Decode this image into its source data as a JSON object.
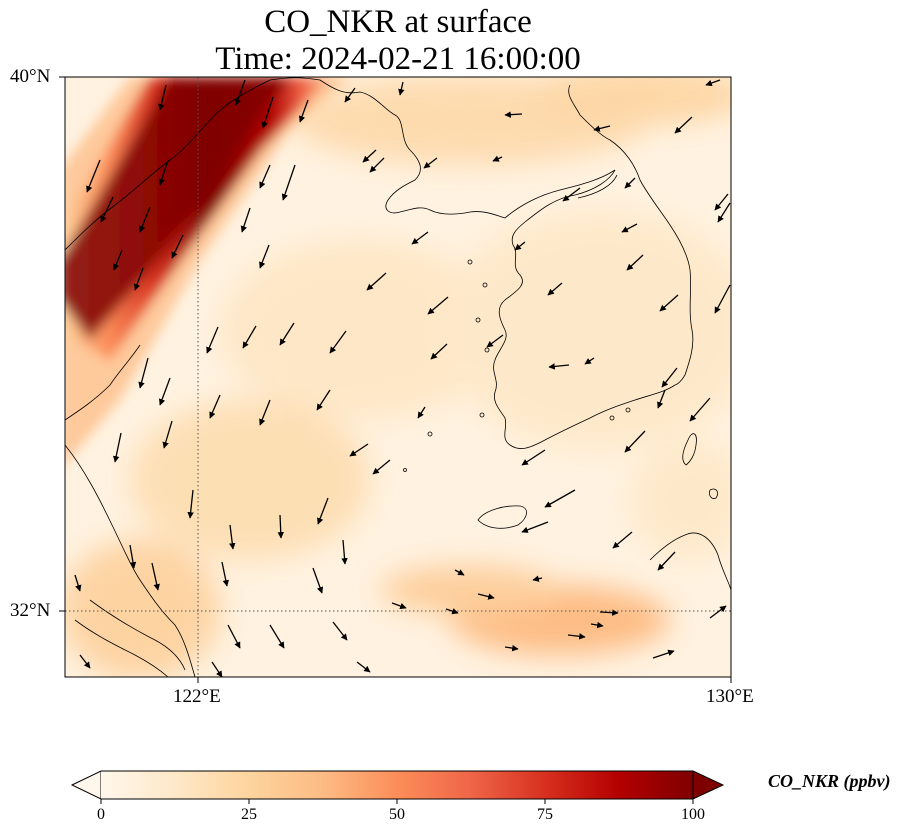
{
  "title": {
    "line1": "CO_NKR at surface",
    "line2": "Time: 2024-02-21 16:00:00"
  },
  "map": {
    "lon_range": [
      120,
      130
    ],
    "lat_range": [
      31,
      40
    ],
    "lat_ticks": [
      {
        "value": 40,
        "label": "40°N"
      },
      {
        "value": 32,
        "label": "32°N"
      }
    ],
    "lon_ticks": [
      {
        "value": 122,
        "label": "122°E"
      },
      {
        "value": 130,
        "label": "130°E"
      }
    ],
    "gridlines": "dotted at 122°E and 32°N"
  },
  "colorbar": {
    "title": "CO_NKR (ppbv)",
    "colormap": "OrRd",
    "min": 0,
    "max": 100,
    "extend": "both",
    "ticks": [
      0,
      25,
      50,
      75,
      100
    ],
    "tick_labels": [
      "0",
      "25",
      "50",
      "75",
      "100"
    ],
    "colors": [
      "#fff7ec",
      "#fee8c8",
      "#fdd49e",
      "#fdbb84",
      "#fc8d59",
      "#ef6548",
      "#d7301f",
      "#b30000",
      "#7f0000"
    ]
  }
}
